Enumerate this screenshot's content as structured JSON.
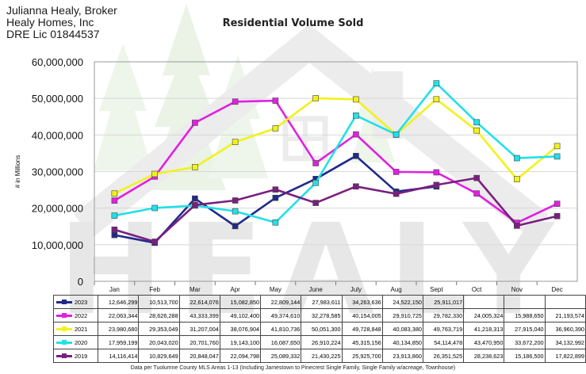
{
  "broker": {
    "line1": "Julianna Healy, Broker",
    "line2": "Healy Homes, Inc",
    "line3": "DRE Lic 01844537"
  },
  "watermark_text": "HEALY",
  "footer": "Data per Tuolumne County MLS Areas 1-13 (Including Jamestown to Pinecrest Single Family, Single Family w/acreage, Townhouse)",
  "chart_data": {
    "type": "line",
    "title": "Residential Volume Sold",
    "ylabel": "# in Millions",
    "xlabel": "",
    "ylim": [
      0,
      60000000
    ],
    "yticks": [
      0,
      10000000,
      20000000,
      30000000,
      40000000,
      50000000,
      60000000
    ],
    "ytick_labels": [
      "0",
      "10,000,000",
      "20,000,000",
      "30,000,000",
      "40,000,000",
      "50,000,000",
      "60,000,000"
    ],
    "categories": [
      "Jan",
      "Feb",
      "Mar",
      "Apr",
      "May",
      "June",
      "July",
      "Aug",
      "Sept",
      "Oct",
      "Nov",
      "Dec"
    ],
    "series": [
      {
        "name": "2023",
        "color": "#1f2a8a",
        "values": [
          12646299,
          10513700,
          22614076,
          15082850,
          22809144,
          27983611,
          34263636,
          24522150,
          25911017,
          null,
          null,
          null
        ],
        "labels": [
          "12,646,299",
          "10,513,700",
          "22,614,076",
          "15,082,850",
          "22,809,144",
          "27,983,611",
          "34,263,636",
          "24,522,150",
          "25,911,017",
          "",
          "",
          ""
        ]
      },
      {
        "name": "2022",
        "color": "#e020e0",
        "values": [
          22063344,
          28626288,
          43333399,
          49102400,
          49374610,
          32278585,
          40154005,
          29910725,
          29782330,
          24005324,
          15988650,
          21193574
        ],
        "labels": [
          "22,063,344",
          "28,626,288",
          "43,333,399",
          "49,102,400",
          "49,374,610",
          "32,278,585",
          "40,154,005",
          "29,910,725",
          "29,782,330",
          "24,005,324",
          "15,988,650",
          "21,193,574"
        ]
      },
      {
        "name": "2021",
        "color": "#f2f21a",
        "values": [
          23980680,
          29353049,
          31207004,
          38076904,
          41810736,
          50051300,
          49728848,
          40083380,
          49763719,
          41218313,
          27915040,
          36960390
        ],
        "labels": [
          "23,980,680",
          "29,353,049",
          "31,207,004",
          "38,076,904",
          "41,810,736",
          "50,051,300",
          "49,728,848",
          "40,083,380",
          "49,763,719",
          "41,218,313",
          "27,915,040",
          "36,960,390"
        ]
      },
      {
        "name": "2020",
        "color": "#22e0e8",
        "values": [
          17959199,
          20043020,
          20701760,
          19143100,
          16087650,
          26910224,
          45315156,
          40134850,
          54114478,
          43470950,
          33672200,
          34132992
        ],
        "labels": [
          "17,959,199",
          "20,043,020",
          "20,701,760",
          "19,143,100",
          "16,087,650",
          "26,910,224",
          "45,315,156",
          "40,134,850",
          "54,114,478",
          "43,470,950",
          "33,672,200",
          "34,132,992"
        ]
      },
      {
        "name": "2019",
        "color": "#7a1f80",
        "values": [
          14116414,
          10829649,
          20848047,
          22094798,
          25089332,
          21430225,
          25925700,
          23913860,
          26351525,
          28238623,
          15186500,
          17822899
        ],
        "labels": [
          "14,116,414",
          "10,829,649",
          "20,848,047",
          "22,094,798",
          "25,089,332",
          "21,430,225",
          "25,925,700",
          "23,913,860",
          "26,351,525",
          "28,238,623",
          "15,186,500",
          "17,822,899"
        ]
      }
    ]
  }
}
